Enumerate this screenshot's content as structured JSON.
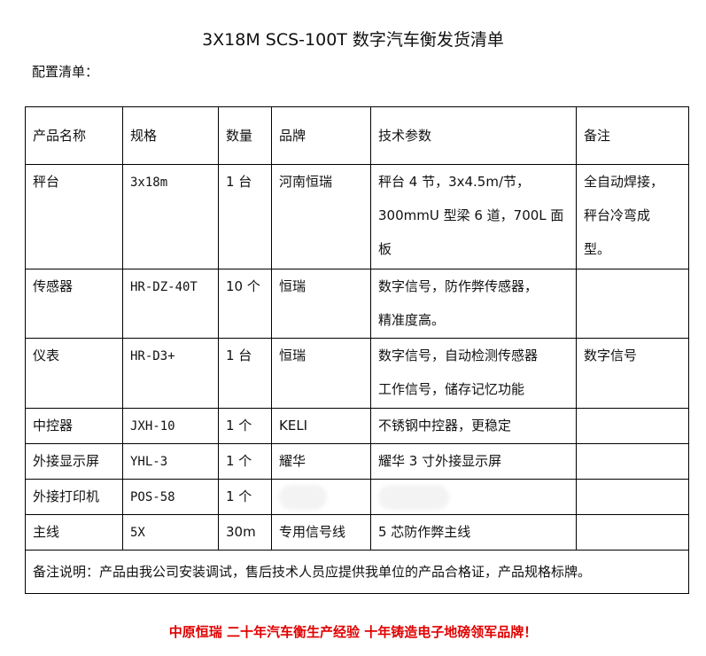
{
  "title": "3X18M SCS-100T 数字汽车衡发货清单",
  "subtitle": "配置清单：",
  "headers": [
    "产品名称",
    "规格",
    "数量",
    "品牌",
    "技术参数",
    "备注"
  ],
  "rows": [
    {
      "name": "秤台",
      "spec": "3x18m",
      "qty": "1 台",
      "brand": "河南恒瑞",
      "tech": [
        "秤台 4 节，3x4.5m/节，",
        "300mmU 型梁 6 道，700L 面板"
      ],
      "remark": [
        "全自动焊接，",
        "秤台冷弯成",
        "型。"
      ]
    },
    {
      "name": "传感器",
      "spec": "HR-DZ-40T",
      "qty": "10 个",
      "brand": "恒瑞",
      "tech": [
        "数字信号，防作弊传感器，",
        "精准度高。"
      ],
      "remark": []
    },
    {
      "name": "仪表",
      "spec": "HR-D3+",
      "qty": "1 台",
      "brand": "恒瑞",
      "tech": [
        "数字信号，自动检测传感器",
        "工作信号，储存记忆功能"
      ],
      "remark": [
        "数字信号"
      ]
    },
    {
      "name": "中控器",
      "spec": "JXH-10",
      "qty": "1 个",
      "brand": "KELI",
      "tech": [
        "不锈钢中控器，更稳定"
      ],
      "remark": []
    },
    {
      "name": "外接显示屏",
      "spec": "YHL-3",
      "qty": "1 个",
      "brand": "耀华",
      "tech": [
        "耀华 3 寸外接显示屏"
      ],
      "remark": []
    },
    {
      "name": "外接打印机",
      "spec": "POS-58",
      "qty": "1 个",
      "brand": "",
      "tech": [],
      "remark": []
    },
    {
      "name": "主线",
      "spec": "5X",
      "qty": "30m",
      "brand": "专用信号线",
      "tech": [
        "5 芯防作弊主线"
      ],
      "remark": []
    }
  ],
  "note": "备注说明：产品由我公司安装调试，售后技术人员应提供我单位的产品合格证，产品规格标牌。",
  "slogan": "中原恒瑞 二十年汽车衡生产经验 十年铸造电子地磅领军品牌！",
  "colors": {
    "slogan": "#e00000"
  }
}
